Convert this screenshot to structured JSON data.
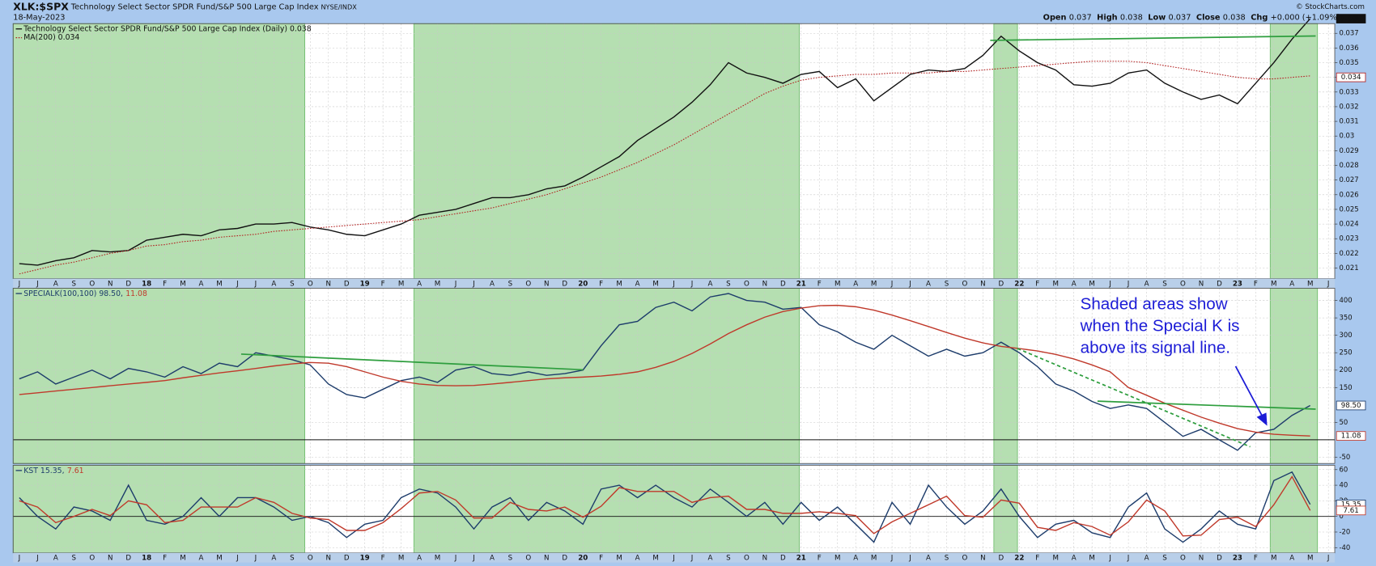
{
  "header": {
    "symbol": "XLK:$SPX",
    "name": "Technology Select Sector SPDR Fund/S&P 500 Large Cap Index",
    "exchange": "NYSE/INDX",
    "date": "18-May-2023",
    "credit": "© StockCharts.com",
    "quote": [
      {
        "label": "Open",
        "value": 0.037
      },
      {
        "label": "High",
        "value": 0.038
      },
      {
        "label": "Low",
        "value": 0.037
      },
      {
        "label": "Close",
        "value": 0.038
      },
      {
        "label": "Chg",
        "value": "+0.000 (+1.09%)"
      }
    ]
  },
  "annotation": [
    "Shaded areas show",
    "when the Special K is",
    "above its signal line."
  ],
  "chart_data": [
    {
      "type": "line",
      "show_x_labels": true,
      "grid": true,
      "categories": [
        "J",
        "J",
        "A",
        "S",
        "O",
        "N",
        "D",
        "18",
        "F",
        "M",
        "A",
        "M",
        "J",
        "J",
        "A",
        "S",
        "O",
        "N",
        "D",
        "19",
        "F",
        "M",
        "A",
        "M",
        "J",
        "J",
        "A",
        "S",
        "O",
        "N",
        "D",
        "20",
        "F",
        "M",
        "A",
        "M",
        "J",
        "J",
        "A",
        "S",
        "O",
        "N",
        "D",
        "21",
        "F",
        "M",
        "A",
        "M",
        "J",
        "J",
        "A",
        "S",
        "O",
        "N",
        "D",
        "22",
        "F",
        "M",
        "A",
        "M",
        "J",
        "J",
        "A",
        "S",
        "O",
        "N",
        "D",
        "23",
        "F",
        "M",
        "A",
        "M",
        "J"
      ],
      "xlim": [
        -0.34,
        72.35
      ],
      "ylim": [
        0.02028,
        0.03766
      ],
      "yticks": [
        0.021,
        0.022,
        0.023,
        0.024,
        0.025,
        0.026,
        0.027,
        0.028,
        0.029,
        0.03,
        0.031,
        0.032,
        0.033,
        0.034,
        0.035,
        0.036,
        0.037
      ],
      "shaded": [
        [
          -0.34,
          15.7
        ],
        [
          21.7,
          42.9
        ],
        [
          53.6,
          54.9
        ],
        [
          68.8,
          71.4
        ]
      ],
      "shade_color": "#b5dfb1",
      "series": [
        {
          "legend": "Technology Select Sector SPDR Fund/S&P 500 Large Cap Index (Daily) 0.038",
          "color": "#111111",
          "style": "solid",
          "last_value": 0.038,
          "values": [
            0.0213,
            0.0212,
            0.0215,
            0.0217,
            0.0222,
            0.0221,
            0.0222,
            0.0229,
            0.0231,
            0.0233,
            0.0232,
            0.0236,
            0.0237,
            0.024,
            0.024,
            0.0241,
            0.0238,
            0.0236,
            0.0233,
            0.0232,
            0.0236,
            0.024,
            0.0246,
            0.0248,
            0.025,
            0.0254,
            0.0258,
            0.0258,
            0.026,
            0.0264,
            0.0266,
            0.0272,
            0.0279,
            0.0286,
            0.0297,
            0.0305,
            0.0313,
            0.0323,
            0.0335,
            0.035,
            0.0343,
            0.034,
            0.0336,
            0.0342,
            0.0344,
            0.0333,
            0.0339,
            0.0324,
            0.0333,
            0.0342,
            0.0345,
            0.0344,
            0.0346,
            0.0355,
            0.0368,
            0.0358,
            0.035,
            0.0345,
            0.0335,
            0.0334,
            0.0336,
            0.0343,
            0.0345,
            0.0336,
            0.033,
            0.0325,
            0.0328,
            0.0322,
            0.0336,
            0.035,
            0.0366,
            0.038,
            null
          ]
        },
        {
          "legend": "MA(200) 0.034",
          "color": "#b22222",
          "style": "dotted",
          "last_value": 0.034,
          "values": [
            0.0206,
            0.0209,
            0.0212,
            0.0214,
            0.0217,
            0.022,
            0.0222,
            0.0225,
            0.0226,
            0.0228,
            0.0229,
            0.0231,
            0.0232,
            0.0233,
            0.0235,
            0.0236,
            0.0237,
            0.0238,
            0.0239,
            0.024,
            0.0241,
            0.0242,
            0.0243,
            0.0245,
            0.0247,
            0.0249,
            0.0251,
            0.0254,
            0.0257,
            0.026,
            0.0264,
            0.0268,
            0.0272,
            0.0277,
            0.0282,
            0.0288,
            0.0294,
            0.0301,
            0.0308,
            0.0315,
            0.0322,
            0.0329,
            0.0334,
            0.0338,
            0.034,
            0.0341,
            0.0342,
            0.0342,
            0.0343,
            0.0343,
            0.0343,
            0.0344,
            0.0344,
            0.0345,
            0.0346,
            0.0347,
            0.0348,
            0.0349,
            0.035,
            0.0351,
            0.0351,
            0.0351,
            0.035,
            0.0348,
            0.0346,
            0.0344,
            0.0342,
            0.034,
            0.0339,
            0.0339,
            0.034,
            0.0341,
            null
          ]
        }
      ],
      "trendlines": [
        {
          "x": [
            53.4,
            71.3
          ],
          "y": [
            0.03652,
            0.03682
          ],
          "color": "#2e9e3e",
          "dashed": false
        }
      ]
    },
    {
      "type": "line",
      "show_x_labels": false,
      "grid": true,
      "categories": [
        "J",
        "J",
        "A",
        "S",
        "O",
        "N",
        "D",
        "18",
        "F",
        "M",
        "A",
        "M",
        "J",
        "J",
        "A",
        "S",
        "O",
        "N",
        "D",
        "19",
        "F",
        "M",
        "A",
        "M",
        "J",
        "J",
        "A",
        "S",
        "O",
        "N",
        "D",
        "20",
        "F",
        "M",
        "A",
        "M",
        "J",
        "J",
        "A",
        "S",
        "O",
        "N",
        "D",
        "21",
        "F",
        "M",
        "A",
        "M",
        "J",
        "J",
        "A",
        "S",
        "O",
        "N",
        "D",
        "22",
        "F",
        "M",
        "A",
        "M",
        "J",
        "J",
        "A",
        "S",
        "O",
        "N",
        "D",
        "23",
        "F",
        "M",
        "A",
        "M",
        "J"
      ],
      "xlim": [
        -0.34,
        72.35
      ],
      "ylim": [
        -68,
        435
      ],
      "yticks": [
        -50,
        50,
        150,
        200,
        250,
        300,
        350,
        400
      ],
      "hlines": [
        0
      ],
      "series": [
        {
          "legend": "SPECIALK(100,100) 98.50,",
          "color": "#1d3c6b",
          "style": "solid",
          "last_value": {
            "value": 98.5,
            "label": "98.50"
          },
          "values": [
            175,
            195,
            160,
            180,
            200,
            175,
            205,
            195,
            180,
            210,
            190,
            220,
            210,
            250,
            240,
            230,
            215,
            160,
            130,
            120,
            145,
            170,
            180,
            165,
            200,
            210,
            190,
            185,
            195,
            185,
            190,
            200,
            270,
            330,
            340,
            380,
            395,
            370,
            410,
            420,
            400,
            395,
            375,
            380,
            330,
            310,
            280,
            260,
            300,
            270,
            240,
            260,
            240,
            250,
            280,
            250,
            210,
            160,
            140,
            110,
            90,
            100,
            90,
            50,
            10,
            30,
            0,
            -30,
            20,
            30,
            70,
            98.5,
            null
          ]
        },
        {
          "legend": "11.08",
          "color": "#c0392b",
          "style": "solid",
          "last_value": 11.08,
          "values": [
            130,
            135,
            140,
            145,
            150,
            155,
            160,
            165,
            170,
            178,
            185,
            192,
            198,
            205,
            212,
            218,
            222,
            220,
            210,
            195,
            180,
            168,
            160,
            156,
            155,
            156,
            160,
            165,
            170,
            175,
            178,
            180,
            183,
            188,
            195,
            208,
            225,
            248,
            275,
            305,
            330,
            352,
            368,
            378,
            385,
            386,
            382,
            372,
            358,
            342,
            325,
            308,
            292,
            278,
            268,
            262,
            255,
            245,
            232,
            215,
            195,
            150,
            128,
            105,
            85,
            65,
            48,
            32,
            22,
            16,
            13,
            11.08,
            null
          ]
        }
      ],
      "trendlines": [
        {
          "x": [
            12.2,
            31.0
          ],
          "y": [
            246,
            201
          ],
          "color": "#2e9e3e",
          "dashed": false
        },
        {
          "x": [
            59.3,
            71.3
          ],
          "y": [
            111,
            88
          ],
          "color": "#2e9e3e",
          "dashed": false
        },
        {
          "x": [
            54.9,
            67.7
          ],
          "y": [
            262,
            -20
          ],
          "color": "#2e9e3e",
          "dashed": true
        }
      ]
    },
    {
      "type": "line",
      "show_x_labels": true,
      "grid": true,
      "categories": [
        "J",
        "J",
        "A",
        "S",
        "O",
        "N",
        "D",
        "18",
        "F",
        "M",
        "A",
        "M",
        "J",
        "J",
        "A",
        "S",
        "O",
        "N",
        "D",
        "19",
        "F",
        "M",
        "A",
        "M",
        "J",
        "J",
        "A",
        "S",
        "O",
        "N",
        "D",
        "20",
        "F",
        "M",
        "A",
        "M",
        "J",
        "J",
        "A",
        "S",
        "O",
        "N",
        "D",
        "21",
        "F",
        "M",
        "A",
        "M",
        "J",
        "J",
        "A",
        "S",
        "O",
        "N",
        "D",
        "22",
        "F",
        "M",
        "A",
        "M",
        "J",
        "J",
        "A",
        "S",
        "O",
        "N",
        "D",
        "23",
        "F",
        "M",
        "A",
        "M",
        "J"
      ],
      "xlim": [
        -0.34,
        72.35
      ],
      "ylim": [
        -46.7,
        65.6
      ],
      "yticks": [
        -40,
        -20,
        0,
        20,
        40,
        60
      ],
      "hlines": [
        0
      ],
      "series": [
        {
          "legend": "KST 15.35,",
          "color": "#1d3c6b",
          "style": "solid",
          "last_value": 15.35,
          "values": [
            24,
            0,
            -16,
            12,
            7,
            -5,
            40,
            -5,
            -10,
            0,
            24,
            0,
            24,
            24,
            12,
            -5,
            0,
            -8,
            -27,
            -10,
            -5,
            24,
            35,
            30,
            12,
            -16,
            12,
            24,
            -5,
            18,
            7,
            -10,
            35,
            40,
            24,
            40,
            24,
            12,
            35,
            18,
            0,
            18,
            -10,
            18,
            -5,
            12,
            -10,
            -33,
            18,
            -10,
            40,
            12,
            -10,
            7,
            35,
            0,
            -27,
            -10,
            -5,
            -21,
            -27,
            12,
            30,
            -16,
            -33,
            -16,
            7,
            -10,
            -16,
            46,
            57,
            15.35,
            null
          ]
        },
        {
          "legend": "7.61",
          "color": "#c0392b",
          "style": "solid",
          "last_value": 7.61,
          "values": [
            20,
            12,
            -8,
            0,
            9,
            1,
            20,
            15,
            -8,
            -5,
            12,
            12,
            12,
            24,
            18,
            4,
            -2,
            -4,
            -18,
            -18,
            -8,
            10,
            30,
            32,
            21,
            -2,
            -2,
            18,
            9,
            7,
            12,
            -1,
            13,
            37,
            32,
            32,
            32,
            18,
            24,
            26,
            9,
            9,
            4,
            4,
            6,
            4,
            1,
            -22,
            -7,
            4,
            15,
            26,
            1,
            -1,
            21,
            17,
            -14,
            -18,
            -8,
            -13,
            -24,
            -7,
            21,
            7,
            -25,
            -24,
            -4,
            -1,
            -13,
            15,
            51,
            7.61,
            null
          ]
        }
      ]
    }
  ]
}
